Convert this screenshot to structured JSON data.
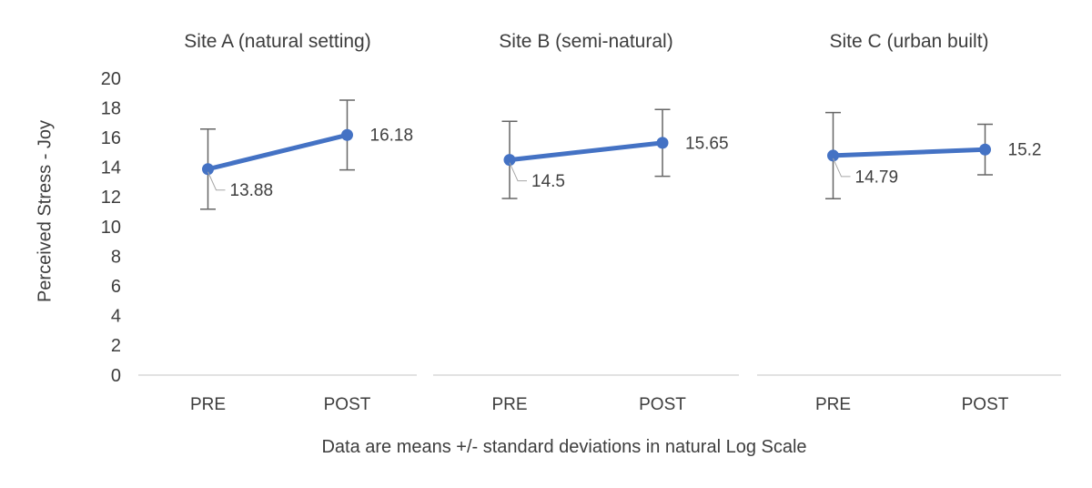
{
  "chart_data": {
    "type": "line",
    "layout": "three-panel small multiples, shared y-axis, error bars, no legend, no gridlines",
    "y_axis_title": "Perceived Stress - Joy",
    "caption": "Data are means +/- standard deviations in natural Log Scale",
    "categories": [
      "PRE",
      "POST"
    ],
    "y_ticks": [
      0,
      2,
      4,
      6,
      8,
      10,
      12,
      14,
      16,
      18,
      20
    ],
    "ylim": [
      0,
      20
    ],
    "panels": [
      {
        "title": "Site A (natural setting)",
        "points": [
          {
            "category": "PRE",
            "value": 13.88,
            "label": "13.88",
            "err_plus": 2.7,
            "err_minus": 2.7,
            "label_pos": "below-right"
          },
          {
            "category": "POST",
            "value": 16.18,
            "label": "16.18",
            "err_plus": 2.35,
            "err_minus": 2.35,
            "label_pos": "right"
          }
        ]
      },
      {
        "title": "Site B (semi-natural)",
        "points": [
          {
            "category": "PRE",
            "value": 14.5,
            "label": "14.5",
            "err_plus": 2.6,
            "err_minus": 2.6,
            "label_pos": "below-right"
          },
          {
            "category": "POST",
            "value": 15.65,
            "label": "15.65",
            "err_plus": 2.25,
            "err_minus": 2.25,
            "label_pos": "right"
          }
        ]
      },
      {
        "title": "Site C (urban built)",
        "points": [
          {
            "category": "PRE",
            "value": 14.79,
            "label": "14.79",
            "err_plus": 2.9,
            "err_minus": 2.9,
            "label_pos": "below-right"
          },
          {
            "category": "POST",
            "value": 15.2,
            "label": "15.2",
            "err_plus": 1.7,
            "err_minus": 1.7,
            "label_pos": "right"
          }
        ]
      }
    ],
    "colors": {
      "series_line": "#4472C4",
      "marker": "#4472C4",
      "error_bar": "#666666",
      "leader_line": "#a6a6a6",
      "axis_line": "#d9d9d9",
      "text": "#3d3d3d",
      "data_label_text": "#404040",
      "background": "#ffffff"
    }
  }
}
